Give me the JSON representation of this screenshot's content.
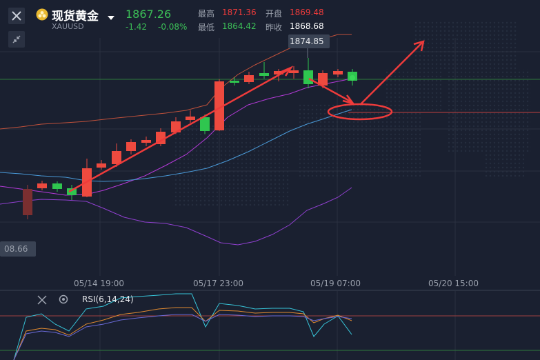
{
  "header": {
    "title": "现货黄金",
    "symbol": "XAUUSD",
    "price": "1867.26",
    "change": "-1.42",
    "change_pct": "-0.08%",
    "stats": {
      "high_label": "最高",
      "high_value": "1871.36",
      "open_label": "开盘",
      "open_value": "1869.48",
      "low_label": "最低",
      "low_value": "1864.42",
      "prev_close_label": "昨收",
      "prev_close_value": "1868.68"
    }
  },
  "chart": {
    "price_tag": "1874.85",
    "left_price_tag": "08.66",
    "x_axis": [
      "05/14 19:00",
      "05/17 23:00",
      "05/19 07:00",
      "05/20 15:00"
    ]
  },
  "indicator": {
    "label": "RSI(6,14,24)"
  },
  "icons": {
    "close": "close-icon",
    "expand": "shrink-icon",
    "gold": "gold-coin-icon",
    "dropdown": "caret-down-icon",
    "settings": "gear-icon"
  },
  "colors": {
    "up": "#ee4a3f",
    "down": "#2fc64f",
    "annotation": "#ee3b3b",
    "upper_band": "#c0513b",
    "mid_band": "#b43ad8",
    "ma_blue": "#4a9ad8",
    "lower_band": "#9040d0"
  }
}
